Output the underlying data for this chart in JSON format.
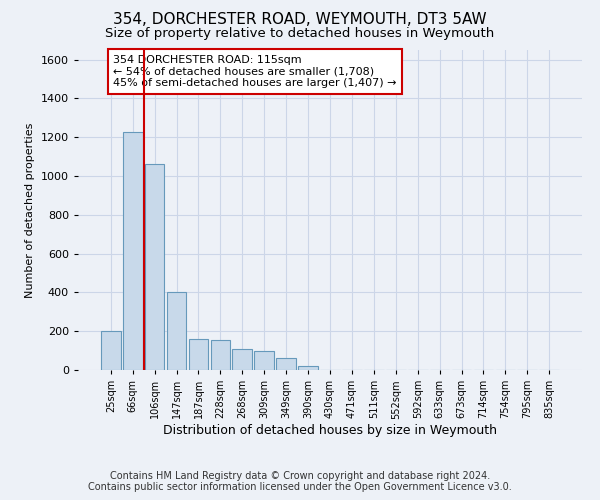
{
  "title": "354, DORCHESTER ROAD, WEYMOUTH, DT3 5AW",
  "subtitle": "Size of property relative to detached houses in Weymouth",
  "xlabel": "Distribution of detached houses by size in Weymouth",
  "ylabel": "Number of detached properties",
  "footer_line1": "Contains HM Land Registry data © Crown copyright and database right 2024.",
  "footer_line2": "Contains public sector information licensed under the Open Government Licence v3.0.",
  "bin_labels": [
    "25sqm",
    "66sqm",
    "106sqm",
    "147sqm",
    "187sqm",
    "228sqm",
    "268sqm",
    "309sqm",
    "349sqm",
    "390sqm",
    "430sqm",
    "471sqm",
    "511sqm",
    "552sqm",
    "592sqm",
    "633sqm",
    "673sqm",
    "714sqm",
    "754sqm",
    "795sqm",
    "835sqm"
  ],
  "bar_values": [
    200,
    1225,
    1060,
    400,
    160,
    155,
    110,
    100,
    60,
    20,
    0,
    0,
    0,
    0,
    0,
    0,
    0,
    0,
    0,
    0,
    0
  ],
  "bar_color": "#c8d9ea",
  "bar_edge_color": "#6699bb",
  "ylim": [
    0,
    1650
  ],
  "yticks": [
    0,
    200,
    400,
    600,
    800,
    1000,
    1200,
    1400,
    1600
  ],
  "red_line_color": "#cc0000",
  "red_line_x": 1.5,
  "annotation_text_line1": "354 DORCHESTER ROAD: 115sqm",
  "annotation_text_line2": "← 54% of detached houses are smaller (1,708)",
  "annotation_text_line3": "45% of semi-detached houses are larger (1,407) →",
  "annotation_box_facecolor": "#ffffff",
  "annotation_box_edgecolor": "#cc0000",
  "grid_color": "#ccd6e8",
  "background_color": "#edf1f7",
  "title_fontsize": 11,
  "subtitle_fontsize": 9.5,
  "annotation_fontsize": 8,
  "footer_fontsize": 7,
  "ylabel_fontsize": 8,
  "xlabel_fontsize": 9,
  "ytick_fontsize": 8,
  "xtick_fontsize": 7
}
